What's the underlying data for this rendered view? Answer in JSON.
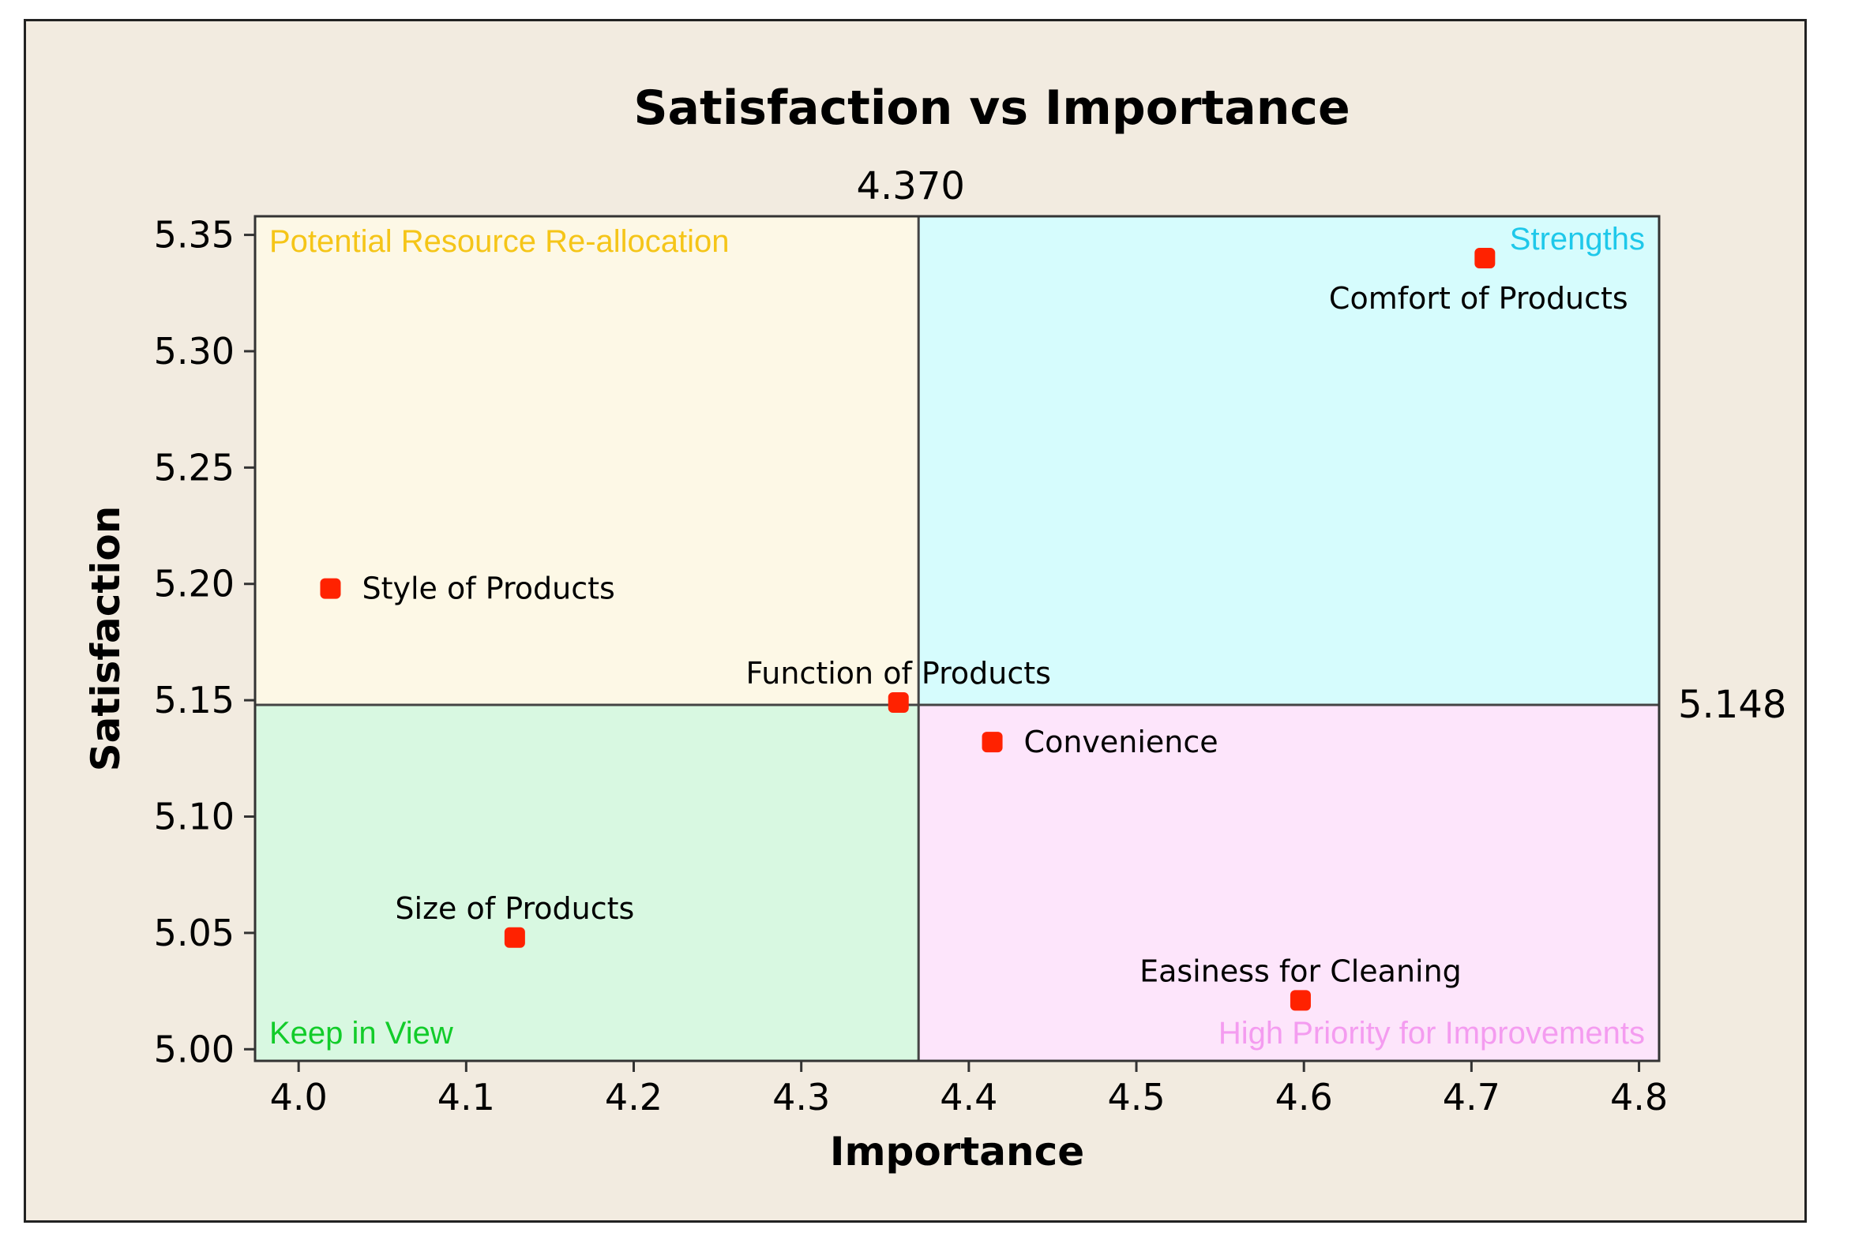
{
  "chart_data": {
    "type": "scatter",
    "title": "Satisfaction vs Importance",
    "xlabel": "Importance",
    "ylabel": "Satisfaction",
    "xlim": [
      3.974,
      4.812
    ],
    "ylim": [
      4.995,
      5.358
    ],
    "xticks": [
      4.0,
      4.1,
      4.2,
      4.3,
      4.4,
      4.5,
      4.6,
      4.7,
      4.8
    ],
    "xtick_labels": [
      "4.0",
      "4.1",
      "4.2",
      "4.3",
      "4.4",
      "4.5",
      "4.6",
      "4.7",
      "4.8"
    ],
    "yticks": [
      5.0,
      5.05,
      5.1,
      5.15,
      5.2,
      5.25,
      5.3,
      5.35
    ],
    "ytick_labels": [
      "5.00",
      "5.05",
      "5.10",
      "5.15",
      "5.20",
      "5.25",
      "5.30",
      "5.35"
    ],
    "ref_x": 4.37,
    "ref_x_label": "4.370",
    "ref_y": 5.148,
    "ref_y_label": "5.148",
    "points": [
      {
        "label": "Comfort of Products",
        "x": 4.708,
        "y": 5.34,
        "label_pos": "below"
      },
      {
        "label": "Style of Products",
        "x": 4.019,
        "y": 5.198,
        "label_pos": "right"
      },
      {
        "label": "Function of Products",
        "x": 4.358,
        "y": 5.149,
        "label_pos": "above"
      },
      {
        "label": "Convenience",
        "x": 4.414,
        "y": 5.132,
        "label_pos": "right"
      },
      {
        "label": "Size of Products",
        "x": 4.129,
        "y": 5.048,
        "label_pos": "above"
      },
      {
        "label": "Easiness for Cleaning",
        "x": 4.598,
        "y": 5.021,
        "label_pos": "above"
      }
    ],
    "quadrants": [
      {
        "name": "Potential Resource Re-allocation",
        "position": "top-left",
        "label_color": "#f5c518",
        "fill": "#fdf8e6"
      },
      {
        "name": "Strengths",
        "position": "top-right",
        "label_color": "#1ec8ea",
        "fill": "#d6fcfd"
      },
      {
        "name": "Keep in View",
        "position": "bottom-left",
        "label_color": "#12cc2a",
        "fill": "#d8f8e1"
      },
      {
        "name": "High Priority for Improvements",
        "position": "bottom-right",
        "label_color": "#f49cf0",
        "fill": "#fde5fb"
      }
    ],
    "marker_color": "#ff2200"
  }
}
